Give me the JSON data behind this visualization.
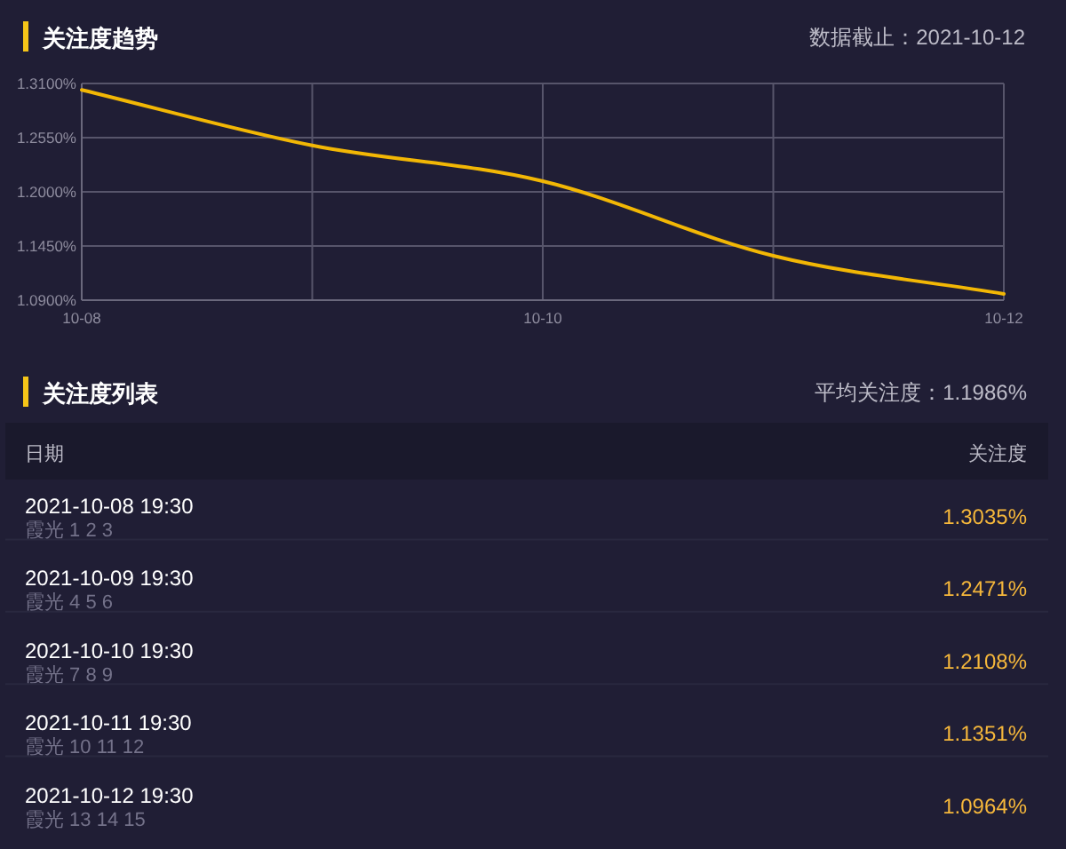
{
  "chart_data": [
    {
      "type": "line",
      "title": "关注度趋势",
      "annotations": [
        "数据截止：2021-10-12"
      ],
      "categories": [
        "10-08",
        null,
        "10-10",
        null,
        "10-12"
      ],
      "values": [
        1.3035,
        1.2471,
        1.2108,
        1.1351,
        1.0964
      ],
      "color": "#f2b705",
      "ylim": [
        1.09,
        1.31
      ],
      "yticks": [
        {
          "value": 1.09,
          "label": "1.0900%"
        },
        {
          "value": 1.145,
          "label": "1.1450%"
        },
        {
          "value": 1.2,
          "label": "1.2000%"
        },
        {
          "value": 1.255,
          "label": "1.2550%"
        },
        {
          "value": 1.31,
          "label": "1.3100%"
        }
      ],
      "grid": true
    },
    {
      "type": "other",
      "title": "关注度列表",
      "annotations": [
        "平均关注度：1.1986%",
        "日期",
        "关注度",
        "2021-10-08 19:30",
        "霞光 1 2 3",
        "1.3035%",
        "2021-10-09 19:30",
        "霞光 4 5 6",
        "1.2471%",
        "2021-10-10 19:30",
        "霞光 7 8 9",
        "1.2108%",
        "2021-10-11 19:30",
        "霞光 10 11 12",
        "1.1351%",
        "2021-10-12 19:30",
        "霞光 13 14 15",
        "1.0964%"
      ]
    }
  ]
}
